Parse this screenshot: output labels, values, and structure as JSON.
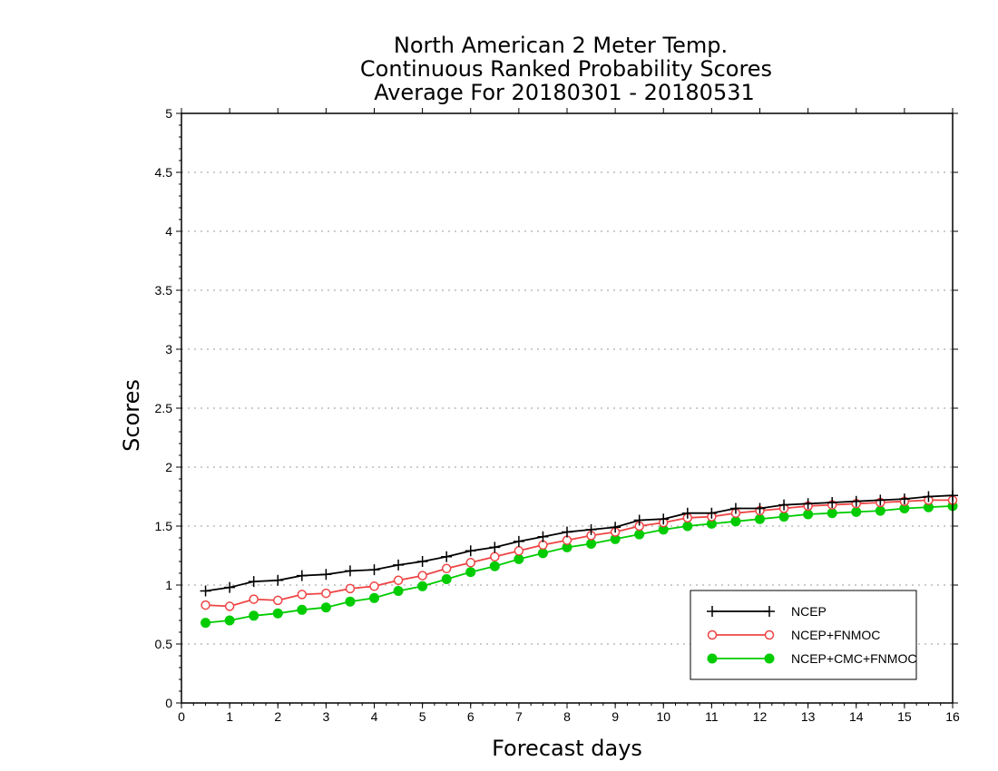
{
  "chart_data": {
    "type": "line",
    "title": [
      "North American 2 Meter Temp.",
      "Continuous Ranked Probability Scores",
      "Average For 20180301 - 20180531"
    ],
    "xlabel": "Forecast days",
    "ylabel": "Scores",
    "xlim": [
      0,
      16
    ],
    "ylim": [
      0,
      5
    ],
    "xticks": [
      "0",
      "1",
      "2",
      "3",
      "4",
      "5",
      "6",
      "7",
      "8",
      "9",
      "10",
      "11",
      "12",
      "13",
      "14",
      "15",
      "16"
    ],
    "yticks": [
      "0",
      "0.5",
      "1",
      "1.5",
      "2",
      "2.5",
      "3",
      "3.5",
      "4",
      "4.5",
      "5"
    ],
    "grid": "horizontal dotted",
    "legend_position": "bottom-right",
    "x": [
      0.5,
      1,
      1.5,
      2,
      2.5,
      3,
      3.5,
      4,
      4.5,
      5,
      5.5,
      6,
      6.5,
      7,
      7.5,
      8,
      8.5,
      9,
      9.5,
      10,
      10.5,
      11,
      11.5,
      12,
      12.5,
      13,
      13.5,
      14,
      14.5,
      15,
      15.5,
      16
    ],
    "series": [
      {
        "name": "NCEP",
        "color": "#000000",
        "marker": "plus",
        "values": [
          0.95,
          0.98,
          1.03,
          1.04,
          1.08,
          1.09,
          1.12,
          1.13,
          1.17,
          1.2,
          1.24,
          1.29,
          1.32,
          1.37,
          1.41,
          1.45,
          1.47,
          1.49,
          1.55,
          1.56,
          1.61,
          1.61,
          1.65,
          1.65,
          1.68,
          1.69,
          1.7,
          1.71,
          1.72,
          1.73,
          1.75,
          1.76
        ]
      },
      {
        "name": "NCEP+FNMOC",
        "color": "#ee4444",
        "marker": "open-circle",
        "values": [
          0.83,
          0.82,
          0.88,
          0.87,
          0.92,
          0.93,
          0.97,
          0.99,
          1.04,
          1.08,
          1.14,
          1.19,
          1.24,
          1.29,
          1.34,
          1.38,
          1.42,
          1.45,
          1.5,
          1.53,
          1.57,
          1.58,
          1.61,
          1.63,
          1.65,
          1.67,
          1.68,
          1.69,
          1.7,
          1.71,
          1.72,
          1.72
        ]
      },
      {
        "name": "NCEP+CMC+FNMOC",
        "color": "#00cc00",
        "marker": "filled-circle",
        "values": [
          0.68,
          0.7,
          0.74,
          0.76,
          0.79,
          0.81,
          0.86,
          0.89,
          0.95,
          0.99,
          1.05,
          1.11,
          1.16,
          1.22,
          1.27,
          1.32,
          1.35,
          1.39,
          1.43,
          1.47,
          1.5,
          1.52,
          1.54,
          1.56,
          1.58,
          1.6,
          1.61,
          1.62,
          1.63,
          1.65,
          1.66,
          1.67
        ]
      }
    ]
  }
}
